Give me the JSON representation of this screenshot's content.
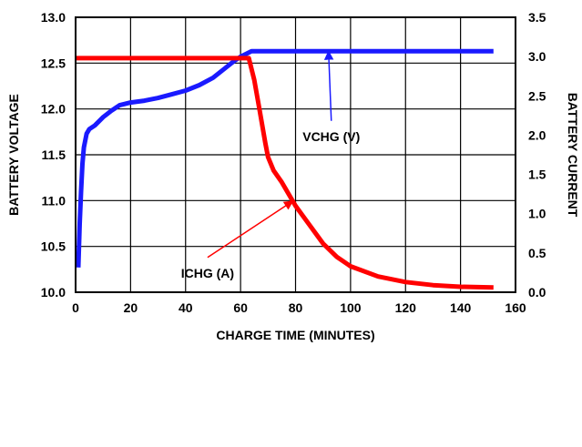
{
  "chart_data": {
    "type": "line",
    "title": "",
    "xlabel": "CHARGE TIME (MINUTES)",
    "ylabel_left": "BATTERY VOLTAGE",
    "ylabel_right": "BATTERY CURRENT",
    "xlim": [
      0,
      160
    ],
    "ylim_left": [
      10.0,
      13.0
    ],
    "ylim_right": [
      0.0,
      3.5
    ],
    "grid": true,
    "x_ticks": [
      "0",
      "20",
      "40",
      "60",
      "80",
      "100",
      "120",
      "140",
      "160"
    ],
    "y_left_ticks": [
      "10.0",
      "10.5",
      "11.0",
      "11.5",
      "12.0",
      "12.5",
      "13.0"
    ],
    "y_right_ticks": [
      "0.0",
      "0.5",
      "1.0",
      "1.5",
      "2.0",
      "2.5",
      "3.0",
      "3.5"
    ],
    "series": [
      {
        "name": "VCHG (V)",
        "axis": "left",
        "color": "#1a1aff",
        "x": [
          1,
          1.5,
          2,
          2.5,
          3,
          4,
          5,
          7,
          10,
          13,
          16,
          20,
          25,
          30,
          35,
          40,
          45,
          50,
          55,
          58,
          60,
          62,
          64,
          80,
          100,
          120,
          140,
          152
        ],
        "y": [
          10.27,
          10.75,
          11.1,
          11.4,
          11.58,
          11.73,
          11.78,
          11.82,
          11.91,
          11.98,
          12.04,
          12.07,
          12.09,
          12.12,
          12.16,
          12.2,
          12.26,
          12.34,
          12.46,
          12.53,
          12.57,
          12.6,
          12.63,
          12.63,
          12.63,
          12.63,
          12.63,
          12.63
        ]
      },
      {
        "name": "ICHG (A)",
        "axis": "right",
        "color": "#ff0000",
        "x": [
          0,
          20,
          40,
          60,
          63,
          65,
          67,
          69,
          70,
          72,
          75,
          80,
          85,
          90,
          95,
          100,
          110,
          120,
          130,
          140,
          152
        ],
        "y": [
          2.98,
          2.98,
          2.98,
          2.98,
          2.98,
          2.7,
          2.3,
          1.9,
          1.72,
          1.55,
          1.4,
          1.1,
          0.86,
          0.62,
          0.45,
          0.33,
          0.2,
          0.13,
          0.09,
          0.07,
          0.06
        ]
      }
    ],
    "annotations": [
      {
        "text": "VCHG (V)",
        "series": "VCHG (V)",
        "at_x": 92,
        "label_x": 93,
        "label_y_left": 11.85
      },
      {
        "text": "ICHG (A)",
        "series": "ICHG (A)",
        "at_x": 79,
        "label_x": 48,
        "label_y_right": 0.42
      }
    ]
  }
}
